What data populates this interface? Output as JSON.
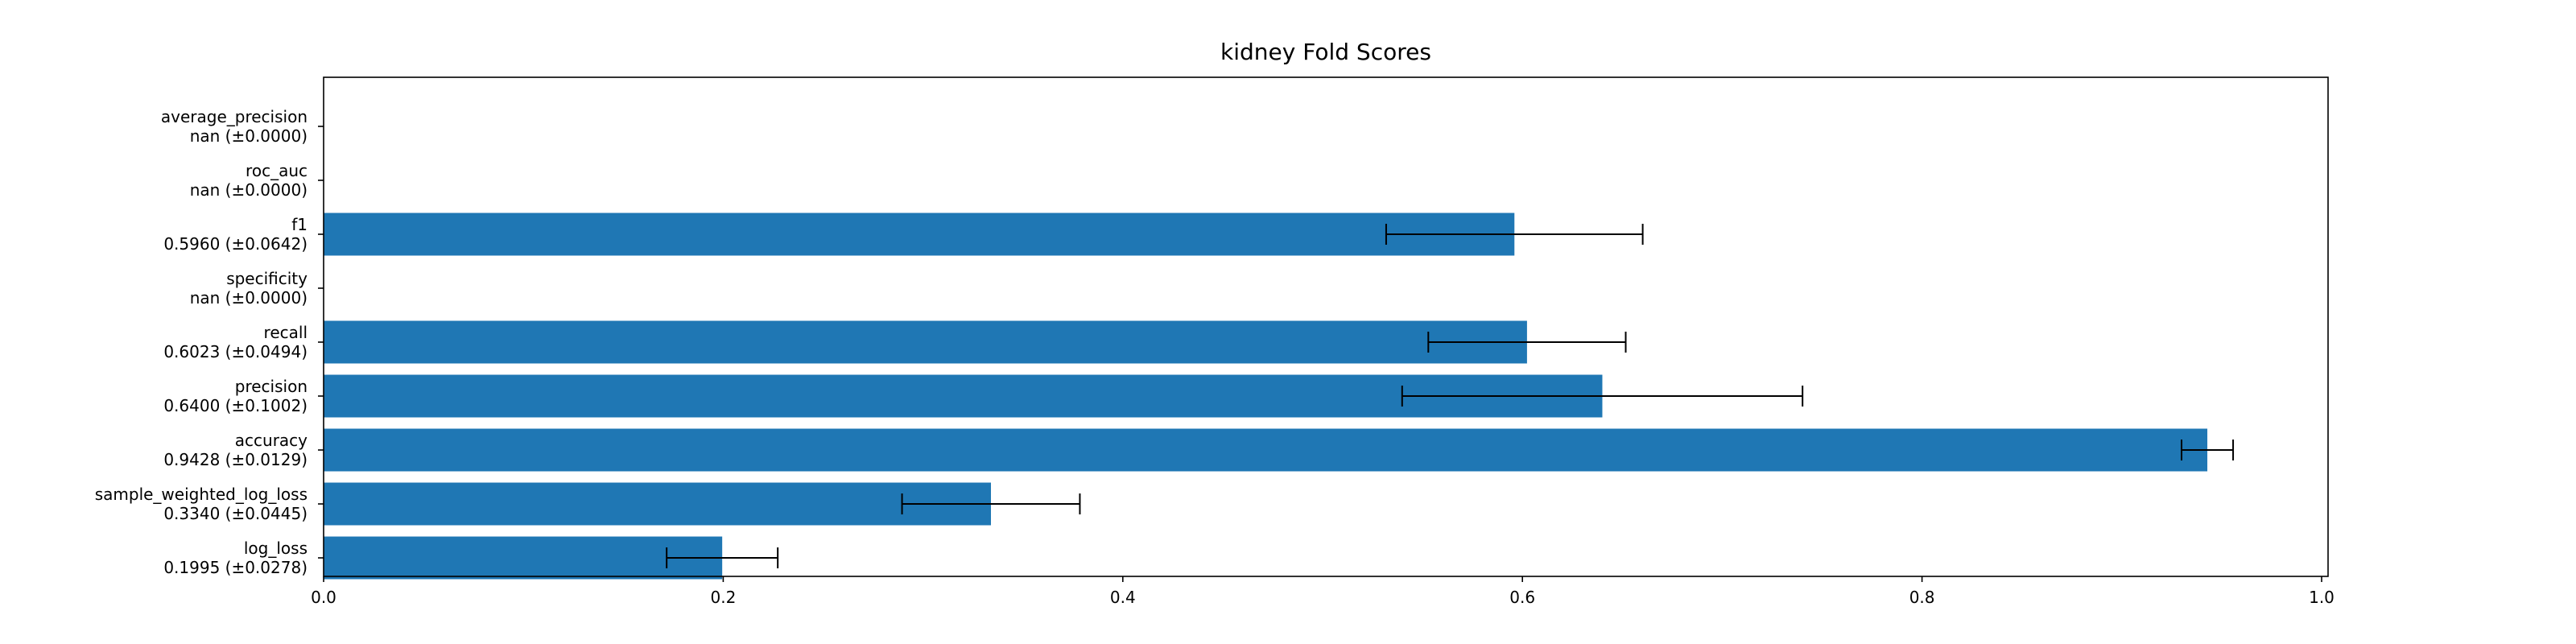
{
  "chart_data": {
    "type": "bar",
    "orientation": "horizontal",
    "title": "kidney Fold Scores",
    "xlabel": "",
    "ylabel": "",
    "xlim": [
      0.0,
      1.0
    ],
    "xticks": [
      "0.0",
      "0.2",
      "0.4",
      "0.6",
      "0.8",
      "1.0"
    ],
    "xtick_values": [
      0.0,
      0.2,
      0.4,
      0.6,
      0.8,
      1.0
    ],
    "bar_color": "#1f77b4",
    "error_color": "#000000",
    "grid": false,
    "categories": [
      {
        "name": "log_loss",
        "summary": "0.1995 (±0.0278)",
        "value": 0.1995,
        "error": 0.0278
      },
      {
        "name": "sample_weighted_log_loss",
        "summary": "0.3340 (±0.0445)",
        "value": 0.334,
        "error": 0.0445
      },
      {
        "name": "accuracy",
        "summary": "0.9428 (±0.0129)",
        "value": 0.9428,
        "error": 0.0129
      },
      {
        "name": "precision",
        "summary": "0.6400 (±0.1002)",
        "value": 0.64,
        "error": 0.1002
      },
      {
        "name": "recall",
        "summary": "0.6023 (±0.0494)",
        "value": 0.6023,
        "error": 0.0494
      },
      {
        "name": "specificity",
        "summary": "nan (±0.0000)",
        "value": null,
        "error": 0.0
      },
      {
        "name": "f1",
        "summary": "0.5960 (±0.0642)",
        "value": 0.596,
        "error": 0.0642
      },
      {
        "name": "roc_auc",
        "summary": "nan (±0.0000)",
        "value": null,
        "error": 0.0
      },
      {
        "name": "average_precision",
        "summary": "nan (±0.0000)",
        "value": null,
        "error": 0.0
      }
    ]
  }
}
